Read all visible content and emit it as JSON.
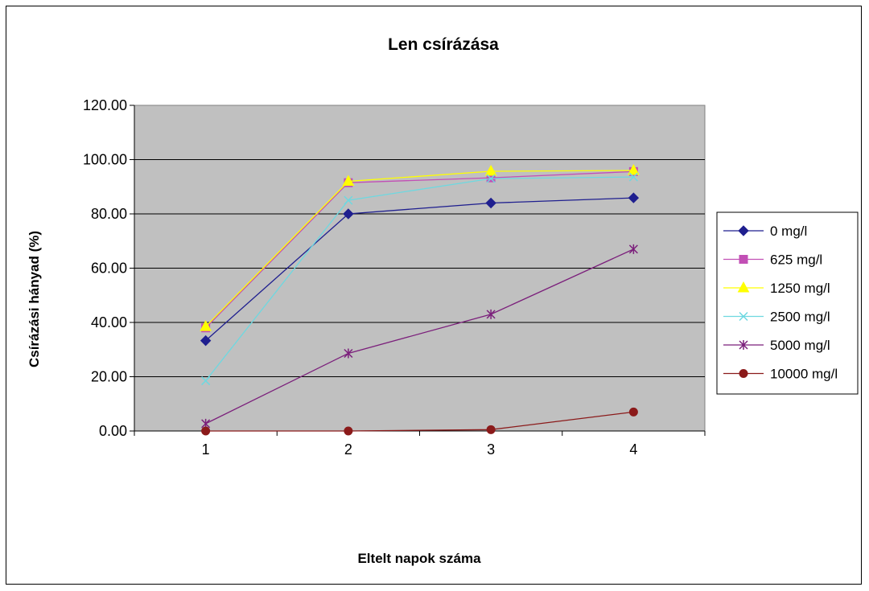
{
  "chart_data": {
    "type": "line",
    "title": "Len csírázása",
    "xlabel": "Eltelt napok száma",
    "ylabel": "Csírázási hányad (%)",
    "categories": [
      "1",
      "2",
      "3",
      "4"
    ],
    "ylim": [
      0,
      120
    ],
    "yticks": [
      "0.00",
      "20.00",
      "40.00",
      "60.00",
      "80.00",
      "100.00",
      "120.00"
    ],
    "grid": true,
    "plot_background": "#c0c0c0",
    "legend_position": "right",
    "series": [
      {
        "name": "0 mg/l",
        "values": [
          33.3,
          80.0,
          84.0,
          85.9
        ],
        "color": "#1f1f8f",
        "marker": "diamond"
      },
      {
        "name": "625 mg/l",
        "values": [
          38.0,
          91.5,
          93.3,
          95.6
        ],
        "color": "#c24fb5",
        "marker": "square"
      },
      {
        "name": "1250 mg/l",
        "values": [
          38.5,
          92.0,
          95.7,
          96.0
        ],
        "color": "#ffff00",
        "marker": "triangle"
      },
      {
        "name": "2500 mg/l",
        "values": [
          18.5,
          85.0,
          93.0,
          93.6
        ],
        "color": "#6ed8e0",
        "marker": "x"
      },
      {
        "name": "5000 mg/l",
        "values": [
          2.7,
          28.6,
          43.0,
          67.0
        ],
        "color": "#7b1f7b",
        "marker": "star"
      },
      {
        "name": "10000 mg/l",
        "values": [
          0.0,
          0.0,
          0.5,
          7.0
        ],
        "color": "#8b1a1a",
        "marker": "circle"
      }
    ]
  }
}
